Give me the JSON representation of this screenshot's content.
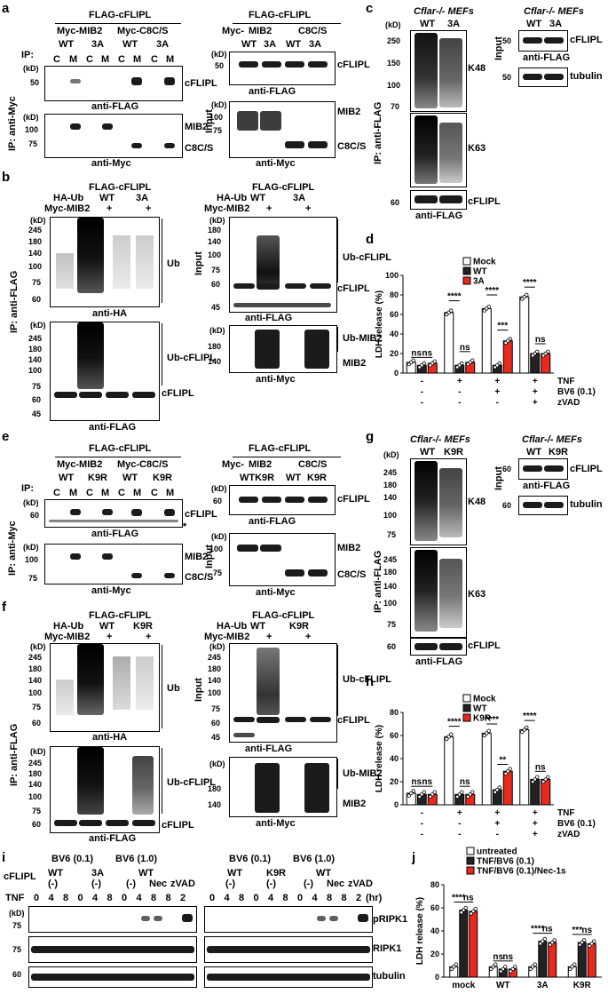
{
  "panel_labels": [
    "a",
    "b",
    "c",
    "d",
    "e",
    "f",
    "g",
    "h",
    "i",
    "j"
  ],
  "common": {
    "kd": "(kD)",
    "ip_myc": "IP: anti-Myc",
    "ip_flag": "IP: anti-FLAG",
    "input": "Input",
    "ip": "IP:",
    "anti_flag": "anti-FLAG",
    "anti_myc": "anti-Myc",
    "anti_ha": "anti-HA",
    "cflip": "cFLIPL",
    "ub": "Ub",
    "ub_cflip": "Ub-cFLIPL",
    "ub_mib2": "Ub-MIB2",
    "mib2": "MIB2",
    "c8cs": "C8C/S",
    "k48": "K48",
    "k63": "K63",
    "tubulin": "tubulin",
    "rip": "RIPK1",
    "prip": "pRIPK1",
    "flag_cflip": "FLAG-cFLIPL",
    "myc_mib2": "Myc-MIB2",
    "myc_c8cs": "Myc-C8C/S",
    "myc": "Myc-",
    "ha_ub": "HA-Ub",
    "wt": "WT",
    "a3": "3A",
    "k9r": "K9R",
    "c": "C",
    "m": "M",
    "plus": "+",
    "minus": "-",
    "star": "*",
    "mefs_ko": "Cflar-/- MEFs",
    "mefs": "MEFs",
    "cflar": "Cflar-/-",
    "wtk9r": "WTK9R",
    "bv6_01": "BV6 (0.1)",
    "bv6_10": "BV6 (1.0)",
    "tnf": "TNF",
    "bv6": "BV6 (0.1)",
    "zvad": "zVAD",
    "nec": "Nec",
    "hr": "(hr)",
    "neg": "(-)",
    "ldh": "LDH release (%)",
    "ns": "ns",
    "st4": "****",
    "st3": "***",
    "st2": "**",
    "mock": "Mock",
    "untreated": "untreated",
    "tnfbv6": "TNF/BV6 (0.1)",
    "tnfbv6nec": "TNF/BV6 (0.1)/Nec-1s"
  },
  "mw": {
    "m50": "50",
    "m75": "75",
    "m100": "100",
    "m60": "60",
    "m45": "45",
    "m140": "140",
    "m180": "180",
    "m245": "245",
    "m250": "250",
    "m150": "150",
    "m70": "70"
  },
  "chart_d": {
    "type": "bar",
    "ylabel": "LDH release (%)",
    "ylim": [
      0,
      100
    ],
    "yticks": [
      0,
      20,
      40,
      60,
      80,
      100
    ],
    "legend": [
      "Mock",
      "WT",
      "3A"
    ],
    "colors": [
      "#ffffff",
      "#222222",
      "#e8291c"
    ],
    "groups": [
      {
        "values": [
          11,
          8,
          10
        ]
      },
      {
        "values": [
          62,
          8,
          11
        ]
      },
      {
        "values": [
          66,
          8,
          33
        ]
      },
      {
        "values": [
          78,
          20,
          20
        ]
      }
    ],
    "conditions": {
      "TNF": [
        "-",
        "+",
        "+",
        "+"
      ],
      "BV6 (0.1)": [
        "-",
        "-",
        "+",
        "+"
      ],
      "zVAD": [
        "-",
        "-",
        "-",
        "+"
      ]
    }
  },
  "chart_h": {
    "type": "bar",
    "ylabel": "LDH release (%)",
    "ylim": [
      0,
      80
    ],
    "yticks": [
      0,
      20,
      40,
      60,
      80
    ],
    "legend": [
      "Mock",
      "WT",
      "K9R"
    ],
    "colors": [
      "#ffffff",
      "#222222",
      "#e8291c"
    ],
    "groups": [
      {
        "values": [
          10,
          9,
          9
        ]
      },
      {
        "values": [
          59,
          9,
          9
        ]
      },
      {
        "values": [
          62,
          13,
          29
        ]
      },
      {
        "values": [
          65,
          22,
          22
        ]
      }
    ],
    "conditions": {
      "TNF": [
        "-",
        "+",
        "+",
        "+"
      ],
      "BV6 (0.1)": [
        "-",
        "-",
        "+",
        "+"
      ],
      "zVAD": [
        "-",
        "-",
        "-",
        "+"
      ]
    }
  },
  "chart_j": {
    "type": "bar",
    "ylabel": "LDH release (%)",
    "ylim": [
      0,
      80
    ],
    "yticks": [
      0,
      20,
      40,
      60,
      80
    ],
    "legend": [
      "untreated",
      "TNF/BV6 (0.1)",
      "TNF/BV6 (0.1)/Nec-1s"
    ],
    "colors": [
      "#ffffff",
      "#222222",
      "#e8291c"
    ],
    "categories": [
      "mock",
      "WT",
      "3A",
      "K9R"
    ],
    "groups": [
      {
        "values": [
          9,
          58,
          57
        ]
      },
      {
        "values": [
          9,
          7,
          7
        ]
      },
      {
        "values": [
          9,
          31,
          30
        ]
      },
      {
        "values": [
          9,
          30,
          29
        ]
      }
    ]
  }
}
